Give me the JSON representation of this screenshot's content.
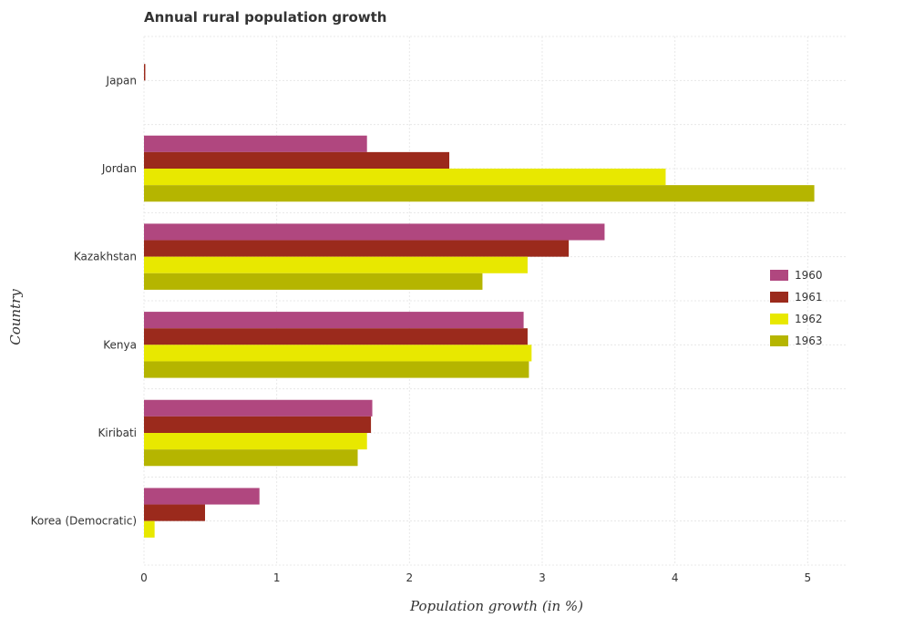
{
  "chart_data": {
    "type": "bar",
    "orientation": "horizontal",
    "title": "Annual rural population growth",
    "xlabel": "Population growth (in %)",
    "ylabel": "Country",
    "categories": [
      "Japan",
      "Jordan",
      "Kazakhstan",
      "Kenya",
      "Kiribati",
      "Korea (Democratic)"
    ],
    "series": [
      {
        "name": "1960",
        "color": "#b0477f",
        "values": [
          0,
          1.68,
          3.47,
          2.86,
          1.72,
          0.87
        ]
      },
      {
        "name": "1961",
        "color": "#9b2a1c",
        "values": [
          0.01,
          2.3,
          3.2,
          2.89,
          1.71,
          0.46
        ]
      },
      {
        "name": "1962",
        "color": "#e8e800",
        "values": [
          0,
          3.93,
          2.89,
          2.92,
          1.68,
          0.08
        ]
      },
      {
        "name": "1963",
        "color": "#b5b500",
        "values": [
          0,
          5.05,
          2.55,
          2.9,
          1.61,
          0
        ]
      }
    ],
    "xlim": [
      0,
      5.3
    ],
    "xticks": [
      "0",
      "1",
      "2",
      "3",
      "4",
      "5"
    ],
    "grid": true,
    "legend_position": "right"
  }
}
